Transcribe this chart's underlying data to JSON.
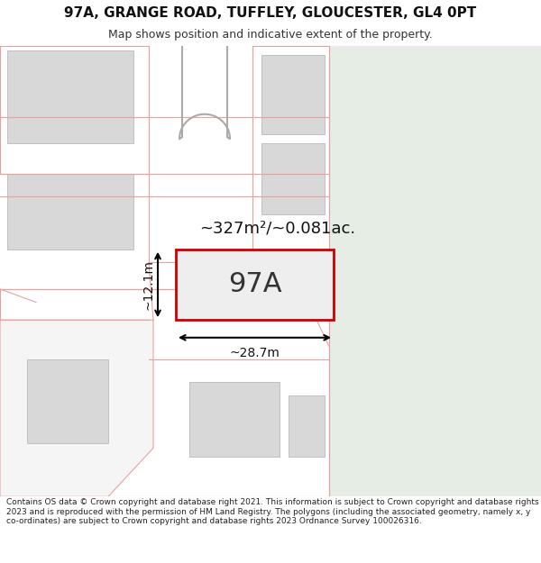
{
  "title_line1": "97A, GRANGE ROAD, TUFFLEY, GLOUCESTER, GL4 0PT",
  "title_line2": "Map shows position and indicative extent of the property.",
  "footer_text": "Contains OS data © Crown copyright and database right 2021. This information is subject to Crown copyright and database rights 2023 and is reproduced with the permission of HM Land Registry. The polygons (including the associated geometry, namely x, y co-ordinates) are subject to Crown copyright and database rights 2023 Ordnance Survey 100026316.",
  "area_text": "~327m²/~0.081ac.",
  "label_97A": "97A",
  "dim_width": "~28.7m",
  "dim_height": "~12.1m",
  "bg_color": "#ffffff",
  "map_bg": "#f0f0f0",
  "green_area_color": "#e5ede5",
  "building_fill": "#d8d8d8",
  "building_edge": "#c0c0c0",
  "boundary_color": "#e8a0a0",
  "dark_boundary": "#cc0000",
  "plot_fill": "#eeeeee",
  "road_white": "#ffffff",
  "title_size": 11,
  "subtitle_size": 9,
  "footer_size": 6.5,
  "area_label_size": 13,
  "dim_label_size": 10,
  "plot_label_size": 22
}
